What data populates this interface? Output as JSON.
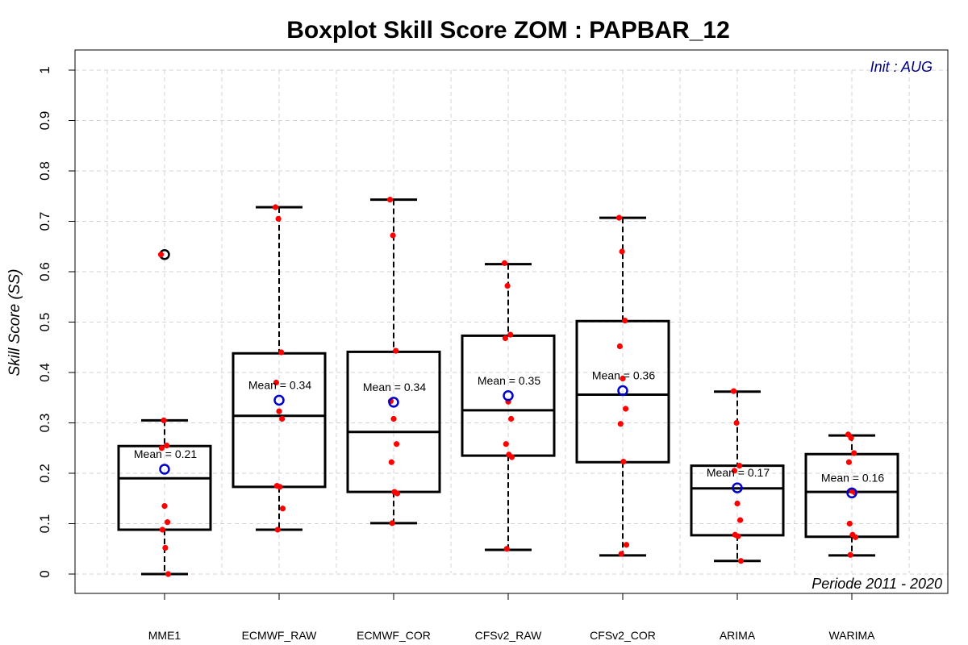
{
  "chart_data": {
    "type": "boxplot",
    "title": "Boxplot Skill Score ZOM : PAPBAR_12",
    "ylabel": "Skill Score (SS)",
    "ylim": [
      0,
      1
    ],
    "yticks": [
      "0",
      "0.1",
      "0.2",
      "0.3",
      "0.4",
      "0.5",
      "0.6",
      "0.7",
      "0.8",
      "0.9",
      "1"
    ],
    "grid": true,
    "annotation_top_right": "Init : AUG",
    "annotation_bottom_right": "Periode 2011 - 2020",
    "colors": {
      "points": "#ff0000",
      "mean_marker": "#0000cc",
      "box": "#000000",
      "grid": "#d3d3d3",
      "init_text": "#00008B"
    },
    "categories": [
      "MME1",
      "ECMWF_RAW",
      "ECMWF_COR",
      "CFSv2_RAW",
      "CFSv2_COR",
      "ARIMA",
      "WARIMA"
    ],
    "boxes": [
      {
        "name": "MME1",
        "whisker_low": 0.0,
        "q1": 0.088,
        "median": 0.19,
        "q3": 0.254,
        "whisker_high": 0.305,
        "mean": 0.208,
        "mean_label": "Mean = 0.21",
        "outliers": [
          0.634
        ],
        "points": [
          0.634,
          0.305,
          0.255,
          0.25,
          0.135,
          0.103,
          0.088,
          0.052,
          0.0
        ]
      },
      {
        "name": "ECMWF_RAW",
        "whisker_low": 0.088,
        "q1": 0.173,
        "median": 0.314,
        "q3": 0.438,
        "whisker_high": 0.728,
        "mean": 0.345,
        "mean_label": "Mean = 0.34",
        "outliers": [],
        "points": [
          0.728,
          0.705,
          0.44,
          0.38,
          0.323,
          0.308,
          0.175,
          0.173,
          0.13,
          0.088
        ]
      },
      {
        "name": "ECMWF_COR",
        "whisker_low": 0.101,
        "q1": 0.163,
        "median": 0.282,
        "q3": 0.441,
        "whisker_high": 0.743,
        "mean": 0.341,
        "mean_label": "Mean = 0.34",
        "outliers": [],
        "points": [
          0.743,
          0.672,
          0.443,
          0.343,
          0.308,
          0.258,
          0.222,
          0.163,
          0.16,
          0.101
        ]
      },
      {
        "name": "CFSv2_RAW",
        "whisker_low": 0.048,
        "q1": 0.235,
        "median": 0.325,
        "q3": 0.473,
        "whisker_high": 0.615,
        "mean": 0.354,
        "mean_label": "Mean = 0.35",
        "outliers": [],
        "points": [
          0.617,
          0.572,
          0.475,
          0.468,
          0.342,
          0.308,
          0.258,
          0.237,
          0.232,
          0.05
        ]
      },
      {
        "name": "CFSv2_COR",
        "whisker_low": 0.037,
        "q1": 0.222,
        "median": 0.356,
        "q3": 0.502,
        "whisker_high": 0.707,
        "mean": 0.364,
        "mean_label": "Mean = 0.36",
        "outliers": [],
        "points": [
          0.707,
          0.64,
          0.503,
          0.452,
          0.388,
          0.328,
          0.298,
          0.223,
          0.058,
          0.04
        ]
      },
      {
        "name": "ARIMA",
        "whisker_low": 0.026,
        "q1": 0.077,
        "median": 0.17,
        "q3": 0.215,
        "whisker_high": 0.362,
        "mean": 0.171,
        "mean_label": "Mean = 0.17",
        "outliers": [],
        "points": [
          0.363,
          0.3,
          0.215,
          0.205,
          0.14,
          0.107,
          0.078,
          0.075,
          0.026
        ]
      },
      {
        "name": "WARIMA",
        "whisker_low": 0.037,
        "q1": 0.074,
        "median": 0.163,
        "q3": 0.238,
        "whisker_high": 0.275,
        "mean": 0.161,
        "mean_label": "Mean = 0.16",
        "outliers": [],
        "points": [
          0.277,
          0.27,
          0.24,
          0.222,
          0.165,
          0.162,
          0.1,
          0.078,
          0.073,
          0.038
        ]
      }
    ]
  }
}
